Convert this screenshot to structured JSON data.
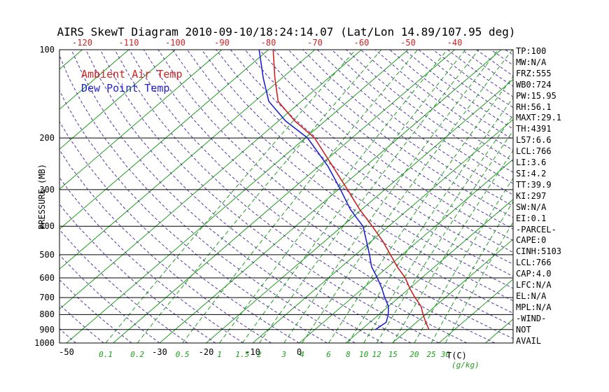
{
  "colors": {
    "isotherm": "#1f9e1f",
    "mixing_ratio": "#1f9e1f",
    "dry_adiabat": "#5533aa",
    "pressure_line": "#000000",
    "temp_curve": "#cc2222",
    "dewpoint_curve": "#2222cc",
    "top_axis_text": "#cc2222"
  },
  "stats_panel": {
    "lines": [
      "TP:100",
      "MW:N/A",
      "FRZ:555",
      "WB0:724",
      "PW:15.95",
      "RH:56.1",
      "MAXT:29.1",
      "TH:4391",
      "L57:6.6",
      "LCL:766",
      "LI:3.6",
      "SI:4.2",
      "TT:39.9",
      "KI:297",
      "SW:N/A",
      "EI:0.1",
      "-PARCEL-",
      "CAPE:0",
      "CINH:5103",
      "LCL:766",
      "CAP:4.0",
      "LFC:N/A",
      "EL:N/A",
      "MPL:N/A",
      "-WIND-",
      "NOT",
      "AVAIL"
    ]
  },
  "chart_data": {
    "type": "line",
    "title": "AIRS SkewT Diagram 2010-09-10/18:24:14.07 (Lat/Lon 14.89/107.95 deg)",
    "y_axis": {
      "label": "PRESSURE (MB)",
      "scale": "log",
      "range_mb": [
        100,
        1000
      ],
      "ticks_mb": [
        100,
        200,
        300,
        400,
        500,
        600,
        700,
        800,
        900,
        1000
      ]
    },
    "x_axis": {
      "unit_label": "T(C)",
      "mixing_unit_label": "(g/kg)",
      "top_ticks_c": [
        -120,
        -110,
        -100,
        -90,
        -80,
        -70,
        -60,
        -50,
        -40
      ],
      "bottom_temp_ticks_c": [
        -50,
        -30,
        -20,
        -10,
        0
      ]
    },
    "isotherms_c": {
      "min": -130,
      "max": 40,
      "step": 10
    },
    "dry_adiabats_theta_c": {
      "min": -60,
      "max": 204,
      "step": 6
    },
    "mixing_ratio_lines_gkg": [
      0.1,
      0.2,
      0.5,
      1,
      1.5,
      2,
      3,
      4,
      6,
      8,
      10,
      12,
      15,
      20,
      25,
      30
    ],
    "legend_position": "top-left-inside",
    "grid": true,
    "series": [
      {
        "name": "Ambient Air Temp",
        "color": "#cc2222",
        "pressure_mb": [
          100,
          125,
          150,
          175,
          200,
          250,
          300,
          350,
          400,
          450,
          500,
          550,
          600,
          650,
          700,
          750,
          800,
          850,
          900
        ],
        "temp_c": [
          -79,
          -71.5,
          -65,
          -56.5,
          -48,
          -37,
          -28,
          -20.5,
          -13.5,
          -7.5,
          -2.5,
          2,
          6.5,
          10,
          13.5,
          17,
          19.5,
          22,
          24.5
        ]
      },
      {
        "name": "Dew Point Temp",
        "color": "#2222cc",
        "pressure_mb": [
          100,
          125,
          150,
          175,
          200,
          250,
          300,
          350,
          400,
          450,
          500,
          550,
          600,
          650,
          700,
          750,
          800,
          850,
          900
        ],
        "temp_c": [
          -82,
          -74,
          -67,
          -58.5,
          -49.5,
          -38,
          -29.5,
          -22.5,
          -15.5,
          -11,
          -7,
          -3.5,
          0.5,
          4,
          7,
          10,
          12,
          13.5,
          13
        ]
      }
    ]
  }
}
